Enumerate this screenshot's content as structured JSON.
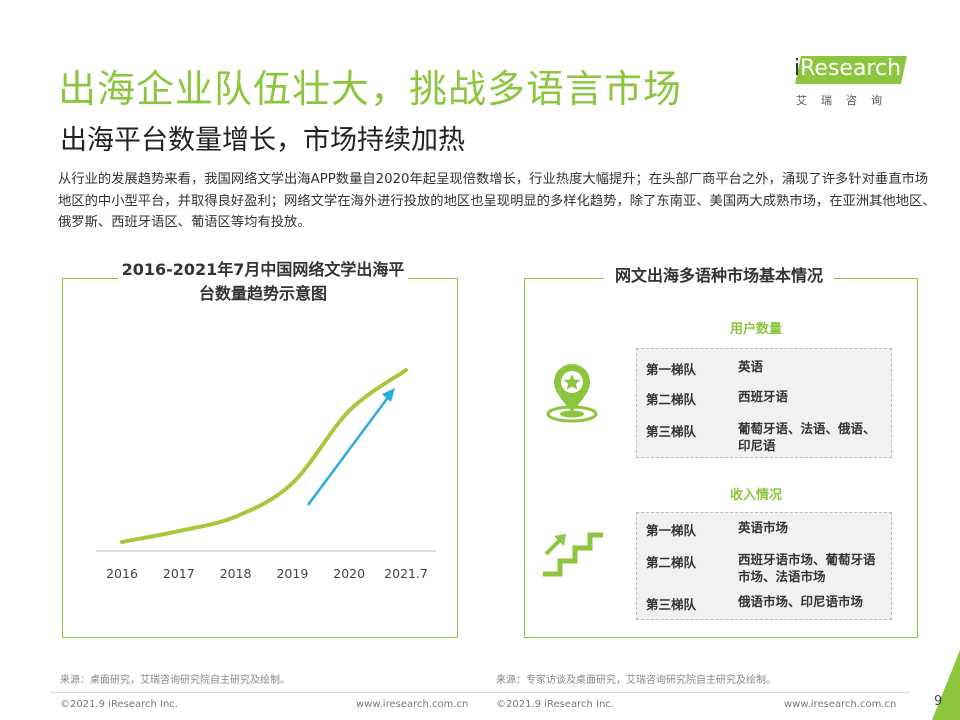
{
  "header": {
    "title": "出海企业队伍壮大，挑战多语言市场",
    "subtitle": "出海平台数量增长，市场持续加热"
  },
  "logo": {
    "brand": "Research",
    "brand_i": "i",
    "sub": "艾瑞咨询"
  },
  "intro": "从行业的发展趋势来看，我国网络文学出海APP数量自2020年起呈现倍数增长，行业热度大幅提升；在头部厂商平台之外，涌现了许多针对垂直市场地区的中小型平台，并取得良好盈利；网络文学在海外进行投放的地区也呈现明显的多样化趋势，除了东南亚、美国两大成熟市场，在亚洲其他地区、俄罗斯、西班牙语区、葡语区等均有投放。",
  "left_panel": {
    "title": "2016-2021年7月中国网络文学出海平台数量趋势示意图"
  },
  "chart_data": {
    "type": "line",
    "title": "2016-2021年7月中国网络文学出海平台数量趋势示意图",
    "categories": [
      "2016",
      "2017",
      "2018",
      "2019",
      "2020",
      "2021.7"
    ],
    "series": [
      {
        "values": [
          1,
          2.2,
          3.8,
          7.5,
          15.5,
          20
        ]
      }
    ],
    "ylim": [
      0,
      22
    ],
    "grid": false,
    "line_color": "#a6c83a",
    "arrow_color": "#29abe2"
  },
  "right_panel": {
    "title": "网文出海多语种市场基本情况",
    "users": {
      "label": "用户数量",
      "icon": "map-pin-star-icon",
      "tiers": [
        {
          "tier": "第一梯队",
          "value": "英语"
        },
        {
          "tier": "第二梯队",
          "value": "西班牙语"
        },
        {
          "tier": "第三梯队",
          "value": "葡萄牙语、法语、俄语、印尼语"
        }
      ]
    },
    "revenue": {
      "label": "收入情况",
      "icon": "stairs-growth-icon",
      "tiers": [
        {
          "tier": "第一梯队",
          "value": "英语市场"
        },
        {
          "tier": "第二梯队",
          "value": "西班牙语市场、葡萄牙语市场、法语市场"
        },
        {
          "tier": "第三梯队",
          "value": "俄语市场、印尼语市场"
        }
      ]
    }
  },
  "footer": {
    "source_left": "来源：桌面研究，艾瑞咨询研究院自主研究及绘制。",
    "source_right": "来源：专家访谈及桌面研究，艾瑞咨询研究院自主研究及绘制。",
    "copyright_left": "©2021.9 iResearch Inc.",
    "url_left": "www.iresearch.com.cn",
    "copyright_right": "©2021.9 iResearch Inc.",
    "url_right": "www.iresearch.com.cn",
    "page": "9"
  },
  "colors": {
    "accent": "#8cc63f",
    "text": "#333333",
    "arrow": "#29abe2"
  }
}
